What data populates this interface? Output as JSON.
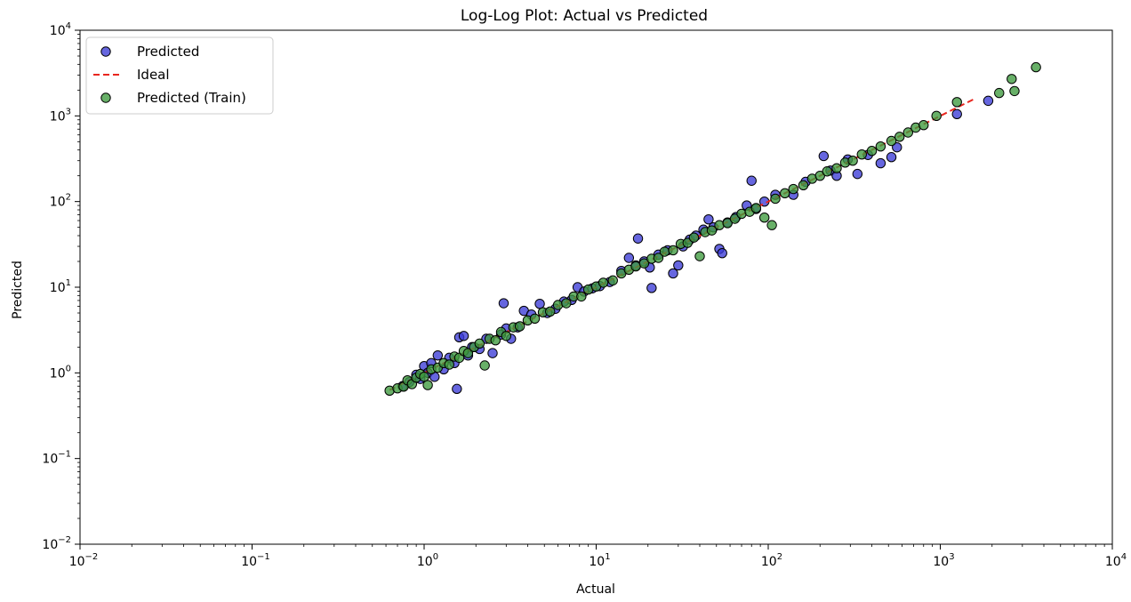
{
  "chart_data": {
    "type": "scatter",
    "title": "Log-Log Plot: Actual vs Predicted",
    "xlabel": "Actual",
    "ylabel": "Predicted",
    "xscale": "log",
    "yscale": "log",
    "xlim": [
      0.01,
      10000
    ],
    "ylim": [
      0.01,
      10000
    ],
    "x_ticks": [
      {
        "value": 0.01,
        "base": "10",
        "exp": "−2"
      },
      {
        "value": 0.1,
        "base": "10",
        "exp": "−1"
      },
      {
        "value": 1,
        "base": "10",
        "exp": "0"
      },
      {
        "value": 10,
        "base": "10",
        "exp": "1"
      },
      {
        "value": 100,
        "base": "10",
        "exp": "2"
      },
      {
        "value": 1000,
        "base": "10",
        "exp": "3"
      },
      {
        "value": 10000,
        "base": "10",
        "exp": "4"
      }
    ],
    "y_ticks": [
      {
        "value": 0.01,
        "base": "10",
        "exp": "−2"
      },
      {
        "value": 0.1,
        "base": "10",
        "exp": "−1"
      },
      {
        "value": 1,
        "base": "10",
        "exp": "0"
      },
      {
        "value": 10,
        "base": "10",
        "exp": "1"
      },
      {
        "value": 100,
        "base": "10",
        "exp": "2"
      },
      {
        "value": 1000,
        "base": "10",
        "exp": "3"
      },
      {
        "value": 10000,
        "base": "10",
        "exp": "4"
      }
    ],
    "grid": false,
    "legend_position": "top-left",
    "legend": [
      {
        "name": "Predicted",
        "kind": "marker",
        "color": "#3b3bd6"
      },
      {
        "name": "Ideal",
        "kind": "dashed-line",
        "color": "#e8261e"
      },
      {
        "name": "Predicted (Train)",
        "kind": "marker",
        "color": "#3d9a3d"
      }
    ],
    "series": [
      {
        "name": "Predicted",
        "color": "#3b3bd6",
        "points": [
          [
            0.75,
            0.7
          ],
          [
            0.82,
            0.78
          ],
          [
            0.9,
            0.95
          ],
          [
            0.95,
            0.85
          ],
          [
            1.0,
            1.2
          ],
          [
            1.05,
            1.0
          ],
          [
            1.1,
            1.3
          ],
          [
            1.15,
            0.9
          ],
          [
            1.2,
            1.6
          ],
          [
            1.3,
            1.1
          ],
          [
            1.4,
            1.5
          ],
          [
            1.5,
            1.3
          ],
          [
            1.55,
            0.65
          ],
          [
            1.6,
            2.6
          ],
          [
            1.7,
            2.7
          ],
          [
            1.8,
            1.6
          ],
          [
            1.9,
            2.0
          ],
          [
            2.1,
            1.9
          ],
          [
            2.3,
            2.5
          ],
          [
            2.5,
            1.7
          ],
          [
            2.8,
            2.8
          ],
          [
            2.9,
            6.5
          ],
          [
            3.0,
            3.3
          ],
          [
            3.2,
            2.5
          ],
          [
            3.5,
            3.4
          ],
          [
            3.8,
            5.3
          ],
          [
            4.2,
            4.8
          ],
          [
            4.7,
            6.4
          ],
          [
            5.2,
            5.0
          ],
          [
            5.8,
            5.6
          ],
          [
            6.5,
            6.8
          ],
          [
            7.2,
            7.1
          ],
          [
            7.8,
            10.0
          ],
          [
            8.5,
            8.9
          ],
          [
            9.5,
            9.7
          ],
          [
            10.5,
            10.3
          ],
          [
            12,
            11.5
          ],
          [
            14,
            15.5
          ],
          [
            15.5,
            22
          ],
          [
            17,
            18
          ],
          [
            17.5,
            37
          ],
          [
            19,
            20
          ],
          [
            20.5,
            17
          ],
          [
            21,
            9.8
          ],
          [
            23,
            24
          ],
          [
            26,
            27
          ],
          [
            28,
            14.5
          ],
          [
            30,
            18
          ],
          [
            32,
            30
          ],
          [
            35,
            36
          ],
          [
            38,
            40
          ],
          [
            42,
            47
          ],
          [
            45,
            62
          ],
          [
            48,
            50
          ],
          [
            52,
            28
          ],
          [
            54,
            25
          ],
          [
            58,
            57
          ],
          [
            65,
            66
          ],
          [
            75,
            90
          ],
          [
            80,
            175
          ],
          [
            85,
            82
          ],
          [
            95,
            100
          ],
          [
            110,
            120
          ],
          [
            140,
            120
          ],
          [
            165,
            170
          ],
          [
            210,
            340
          ],
          [
            230,
            230
          ],
          [
            250,
            200
          ],
          [
            290,
            310
          ],
          [
            330,
            210
          ],
          [
            380,
            350
          ],
          [
            450,
            280
          ],
          [
            520,
            330
          ],
          [
            560,
            430
          ],
          [
            1250,
            1050
          ],
          [
            1900,
            1500
          ]
        ]
      },
      {
        "name": "Predicted (Train)",
        "color": "#3d9a3d",
        "points": [
          [
            0.63,
            0.62
          ],
          [
            0.7,
            0.66
          ],
          [
            0.76,
            0.69
          ],
          [
            0.8,
            0.82
          ],
          [
            0.85,
            0.74
          ],
          [
            0.9,
            0.88
          ],
          [
            0.95,
            0.97
          ],
          [
            1.0,
            0.9
          ],
          [
            1.05,
            0.72
          ],
          [
            1.1,
            1.1
          ],
          [
            1.2,
            1.15
          ],
          [
            1.3,
            1.3
          ],
          [
            1.4,
            1.25
          ],
          [
            1.5,
            1.55
          ],
          [
            1.6,
            1.5
          ],
          [
            1.7,
            1.8
          ],
          [
            1.8,
            1.7
          ],
          [
            1.95,
            2.0
          ],
          [
            2.1,
            2.2
          ],
          [
            2.25,
            1.22
          ],
          [
            2.4,
            2.5
          ],
          [
            2.6,
            2.4
          ],
          [
            2.8,
            3.0
          ],
          [
            3.0,
            2.7
          ],
          [
            3.3,
            3.4
          ],
          [
            3.6,
            3.5
          ],
          [
            4.0,
            4.1
          ],
          [
            4.4,
            4.3
          ],
          [
            4.9,
            5.1
          ],
          [
            5.4,
            5.2
          ],
          [
            6.0,
            6.2
          ],
          [
            6.7,
            6.5
          ],
          [
            7.4,
            7.8
          ],
          [
            8.2,
            7.8
          ],
          [
            9.0,
            9.4
          ],
          [
            10,
            10.2
          ],
          [
            11,
            11.3
          ],
          [
            12.5,
            12.0
          ],
          [
            14,
            14.5
          ],
          [
            15.5,
            16
          ],
          [
            17,
            17.5
          ],
          [
            19,
            19
          ],
          [
            21,
            21.5
          ],
          [
            23,
            22
          ],
          [
            25,
            26
          ],
          [
            28,
            27
          ],
          [
            31,
            32
          ],
          [
            34,
            33
          ],
          [
            37,
            38
          ],
          [
            40,
            23
          ],
          [
            43,
            44
          ],
          [
            47,
            46
          ],
          [
            52,
            53
          ],
          [
            58,
            56
          ],
          [
            64,
            63
          ],
          [
            70,
            72
          ],
          [
            78,
            76
          ],
          [
            85,
            84
          ],
          [
            95,
            65
          ],
          [
            105,
            53
          ],
          [
            110,
            108
          ],
          [
            125,
            125
          ],
          [
            140,
            140
          ],
          [
            160,
            155
          ],
          [
            180,
            185
          ],
          [
            200,
            200
          ],
          [
            220,
            225
          ],
          [
            250,
            245
          ],
          [
            280,
            285
          ],
          [
            310,
            300
          ],
          [
            350,
            355
          ],
          [
            400,
            390
          ],
          [
            450,
            440
          ],
          [
            520,
            510
          ],
          [
            580,
            570
          ],
          [
            650,
            640
          ],
          [
            720,
            730
          ],
          [
            800,
            780
          ],
          [
            950,
            1000
          ],
          [
            1250,
            1450
          ],
          [
            2200,
            1850
          ],
          [
            2600,
            2700
          ],
          [
            2700,
            1950
          ],
          [
            3600,
            3700
          ]
        ]
      }
    ],
    "ideal_line": {
      "name": "Ideal",
      "from": [
        0.63,
        0.63
      ],
      "to": [
        1600,
        1600
      ]
    }
  }
}
